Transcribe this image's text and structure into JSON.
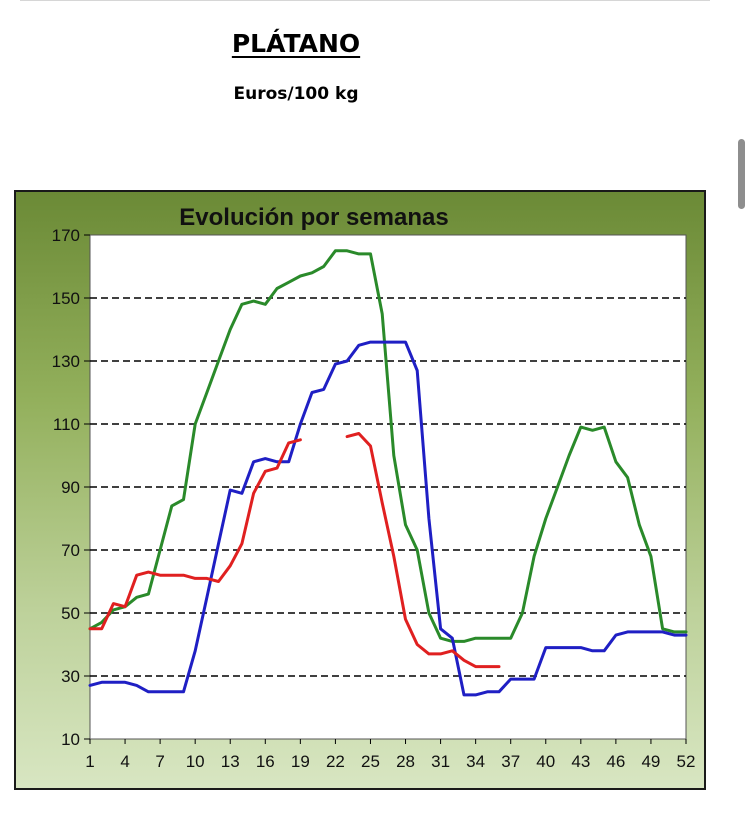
{
  "page": {
    "title": "PLÁTANO",
    "subtitle": "Euros/100 kg"
  },
  "chart_data": {
    "type": "line",
    "title": "Evolución por semanas",
    "xlabel": "",
    "ylabel": "",
    "xlim": [
      1,
      52
    ],
    "ylim": [
      10,
      170
    ],
    "xticks": [
      1,
      4,
      7,
      10,
      13,
      16,
      19,
      22,
      25,
      28,
      31,
      34,
      37,
      40,
      43,
      46,
      49,
      52
    ],
    "yticks": [
      10,
      30,
      50,
      70,
      90,
      110,
      130,
      150,
      170
    ],
    "grid": "horizontal dashed",
    "legend": "none",
    "series": [
      {
        "color": "#2a8a2a",
        "x": [
          1,
          2,
          3,
          4,
          5,
          6,
          7,
          8,
          9,
          10,
          11,
          12,
          13,
          14,
          15,
          16,
          17,
          18,
          19,
          20,
          21,
          22,
          23,
          24,
          25,
          26,
          27,
          28,
          29,
          30,
          31,
          32,
          33,
          34,
          35,
          36,
          37,
          38,
          39,
          40,
          41,
          42,
          43,
          44,
          45,
          46,
          47,
          48,
          49,
          50,
          51,
          52
        ],
        "y": [
          45,
          47,
          51,
          52,
          55,
          56,
          70,
          84,
          86,
          110,
          120,
          130,
          140,
          148,
          149,
          148,
          153,
          155,
          157,
          158,
          160,
          165,
          165,
          164,
          164,
          145,
          100,
          78,
          70,
          50,
          42,
          41,
          41,
          42,
          42,
          42,
          42,
          50,
          68,
          80,
          90,
          100,
          109,
          108,
          109,
          98,
          93,
          78,
          68,
          45,
          44,
          44
        ]
      },
      {
        "color": "#1f1fc4",
        "x": [
          1,
          2,
          3,
          4,
          5,
          6,
          7,
          8,
          9,
          10,
          11,
          12,
          13,
          14,
          15,
          16,
          17,
          18,
          19,
          20,
          21,
          22,
          23,
          24,
          25,
          26,
          27,
          28,
          29,
          30,
          31,
          32,
          33,
          34,
          35,
          36,
          37,
          38,
          39,
          40,
          41,
          42,
          43,
          44,
          45,
          46,
          47,
          48,
          49,
          50,
          51,
          52
        ],
        "y": [
          27,
          28,
          28,
          28,
          27,
          25,
          25,
          25,
          25,
          38,
          55,
          72,
          89,
          88,
          98,
          99,
          98,
          98,
          110,
          120,
          121,
          129,
          130,
          135,
          136,
          136,
          136,
          136,
          127,
          80,
          45,
          42,
          24,
          24,
          25,
          25,
          29,
          29,
          29,
          39,
          39,
          39,
          39,
          38,
          38,
          43,
          44,
          44,
          44,
          44,
          43,
          43
        ]
      },
      {
        "color": "#e02020",
        "x": [
          1,
          2,
          3,
          4,
          5,
          6,
          7,
          8,
          9,
          10,
          11,
          12,
          13,
          14,
          15,
          16,
          17,
          18,
          19,
          null,
          23,
          24,
          25,
          26,
          27,
          28,
          29,
          30,
          31,
          32,
          33,
          34,
          35,
          36
        ],
        "y": [
          45,
          45,
          53,
          52,
          62,
          63,
          62,
          62,
          62,
          61,
          61,
          60,
          65,
          72,
          88,
          95,
          96,
          104,
          105,
          null,
          106,
          107,
          103,
          85,
          68,
          48,
          40,
          37,
          37,
          38,
          35,
          33,
          33,
          33
        ]
      }
    ]
  }
}
